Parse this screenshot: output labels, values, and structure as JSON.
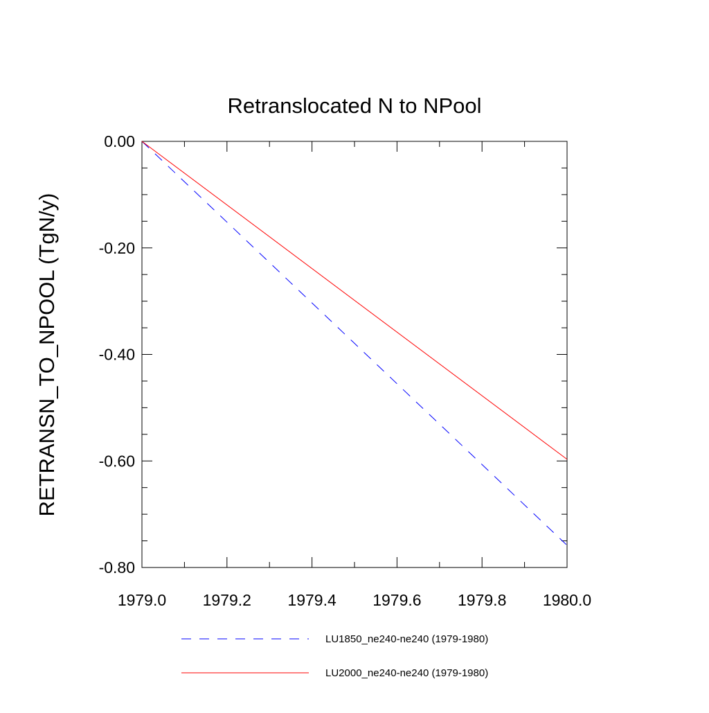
{
  "chart_data": {
    "type": "line",
    "title": "Retranslocated N to NPool",
    "xlabel": "",
    "ylabel": "RETRANSN_TO_NPOOL  (TgN/y)",
    "xlim": [
      1979.0,
      1980.0
    ],
    "ylim": [
      -0.8,
      0.0
    ],
    "x_ticks": [
      1979.0,
      1979.2,
      1979.4,
      1979.6,
      1979.8,
      1980.0
    ],
    "x_tick_labels": [
      "1979.0",
      "1979.2",
      "1979.4",
      "1979.6",
      "1979.8",
      "1980.0"
    ],
    "y_ticks": [
      0.0,
      -0.2,
      -0.4,
      -0.6,
      -0.8
    ],
    "y_tick_labels": [
      "0.00",
      "-0.20",
      "-0.40",
      "-0.60",
      "-0.80"
    ],
    "y_minor_step": 0.05,
    "x_minor_step": 0.1,
    "grid": false,
    "legend_position": "bottom",
    "series": [
      {
        "name": "LU1850_ne240-ne240 (1979-1980)",
        "color": "#0000ff",
        "dash": "dashed",
        "x": [
          1979.0,
          1979.998
        ],
        "y": [
          0.0,
          -0.757
        ]
      },
      {
        "name": "LU2000_ne240-ne240 (1979-1980)",
        "color": "#ff0000",
        "dash": "solid",
        "x": [
          1979.0,
          1980.0
        ],
        "y": [
          0.0,
          -0.597
        ]
      }
    ]
  }
}
